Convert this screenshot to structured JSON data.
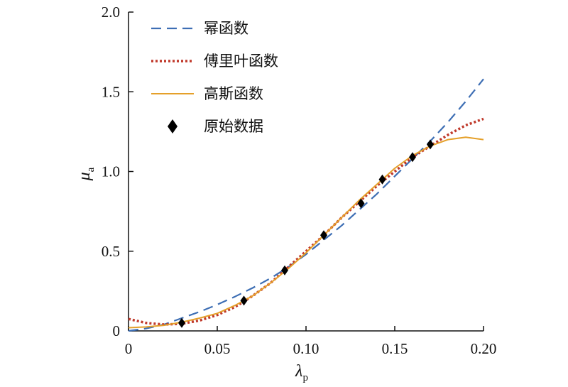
{
  "chart_data": {
    "type": "line",
    "title": "",
    "xlabel": "λ",
    "xlabel_subscript": "p",
    "ylabel": "μ",
    "ylabel_subscript": "a",
    "xlim": [
      0,
      0.2
    ],
    "ylim": [
      0,
      2.0
    ],
    "x_ticks": [
      0,
      0.05,
      0.1,
      0.15,
      0.2
    ],
    "x_tick_labels": [
      "0",
      "0.05",
      "0.10",
      "0.15",
      "0.20"
    ],
    "y_ticks": [
      0,
      0.5,
      1.0,
      1.5,
      2.0
    ],
    "y_tick_labels": [
      "0",
      "0.5",
      "1.0",
      "1.5",
      "2.0"
    ],
    "grid": false,
    "legend_position": "top-left",
    "series": [
      {
        "name": "幂函数",
        "style": "dashed",
        "color": "#3d6eb4",
        "x": [
          0,
          0.01,
          0.02,
          0.03,
          0.04,
          0.05,
          0.06,
          0.07,
          0.08,
          0.09,
          0.1,
          0.11,
          0.12,
          0.13,
          0.14,
          0.15,
          0.16,
          0.17,
          0.18,
          0.19,
          0.2
        ],
        "y": [
          0.0,
          0.015,
          0.04,
          0.08,
          0.12,
          0.165,
          0.215,
          0.27,
          0.33,
          0.4,
          0.48,
          0.57,
          0.66,
          0.76,
          0.86,
          0.97,
          1.08,
          1.19,
          1.31,
          1.44,
          1.58
        ]
      },
      {
        "name": "傅里叶函数",
        "style": "dotted",
        "color": "#c0392b",
        "x": [
          0,
          0.01,
          0.02,
          0.03,
          0.04,
          0.05,
          0.06,
          0.07,
          0.08,
          0.09,
          0.1,
          0.11,
          0.12,
          0.13,
          0.14,
          0.15,
          0.16,
          0.17,
          0.18,
          0.19,
          0.2
        ],
        "y": [
          0.075,
          0.05,
          0.04,
          0.045,
          0.065,
          0.1,
          0.15,
          0.22,
          0.3,
          0.4,
          0.5,
          0.6,
          0.71,
          0.81,
          0.91,
          1.0,
          1.09,
          1.16,
          1.23,
          1.29,
          1.33
        ]
      },
      {
        "name": "高斯函数",
        "style": "solid",
        "color": "#e5a02a",
        "x": [
          0,
          0.01,
          0.02,
          0.03,
          0.04,
          0.05,
          0.06,
          0.07,
          0.08,
          0.09,
          0.1,
          0.11,
          0.12,
          0.13,
          0.14,
          0.15,
          0.16,
          0.17,
          0.18,
          0.19,
          0.2
        ],
        "y": [
          0.02,
          0.025,
          0.035,
          0.055,
          0.08,
          0.11,
          0.16,
          0.22,
          0.3,
          0.39,
          0.49,
          0.6,
          0.71,
          0.82,
          0.92,
          1.02,
          1.1,
          1.16,
          1.2,
          1.215,
          1.2
        ]
      },
      {
        "name": "原始数据",
        "style": "marker",
        "marker": "diamond",
        "color": "#000000",
        "x": [
          0.03,
          0.065,
          0.088,
          0.11,
          0.131,
          0.143,
          0.16,
          0.17
        ],
        "y": [
          0.05,
          0.19,
          0.38,
          0.6,
          0.8,
          0.95,
          1.09,
          1.17
        ]
      }
    ]
  }
}
